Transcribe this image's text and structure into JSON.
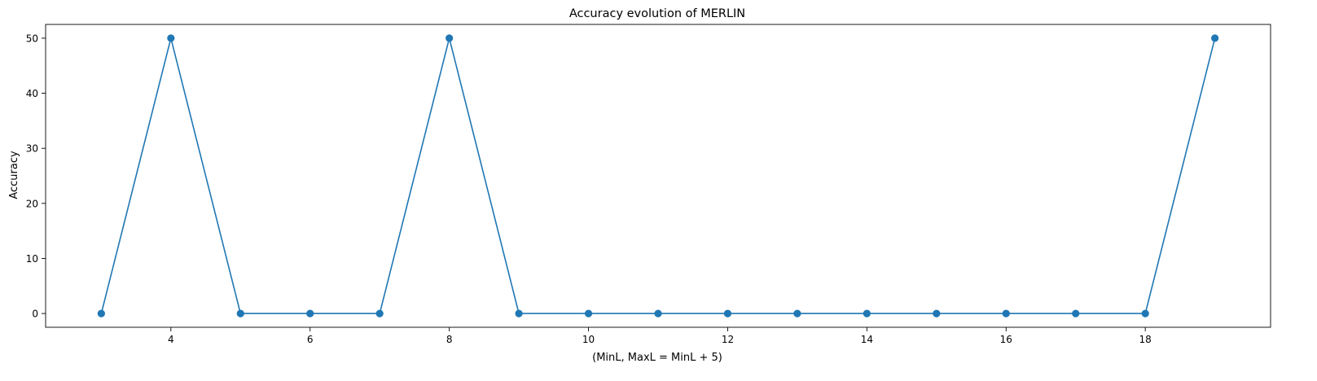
{
  "chart_data": {
    "type": "line",
    "title": "Accuracy evolution of MERLIN",
    "xlabel": "(MinL, MaxL = MinL + 5)",
    "ylabel": "Accuracy",
    "x": [
      3,
      4,
      5,
      6,
      7,
      8,
      9,
      10,
      11,
      12,
      13,
      14,
      15,
      16,
      17,
      18,
      19
    ],
    "series": [
      {
        "values": [
          0,
          50,
          0,
          0,
          0,
          50,
          0,
          0,
          0,
          0,
          0,
          0,
          0,
          0,
          0,
          0,
          50
        ],
        "color": "#1f77b4",
        "marker": "circle"
      }
    ],
    "xticks": [
      4,
      6,
      8,
      10,
      12,
      14,
      16,
      18
    ],
    "yticks": [
      0,
      10,
      20,
      30,
      40,
      50
    ],
    "xlim": [
      2.2,
      19.8
    ],
    "ylim": [
      -2.5,
      52.5
    ],
    "grid": false,
    "legend": "none"
  }
}
